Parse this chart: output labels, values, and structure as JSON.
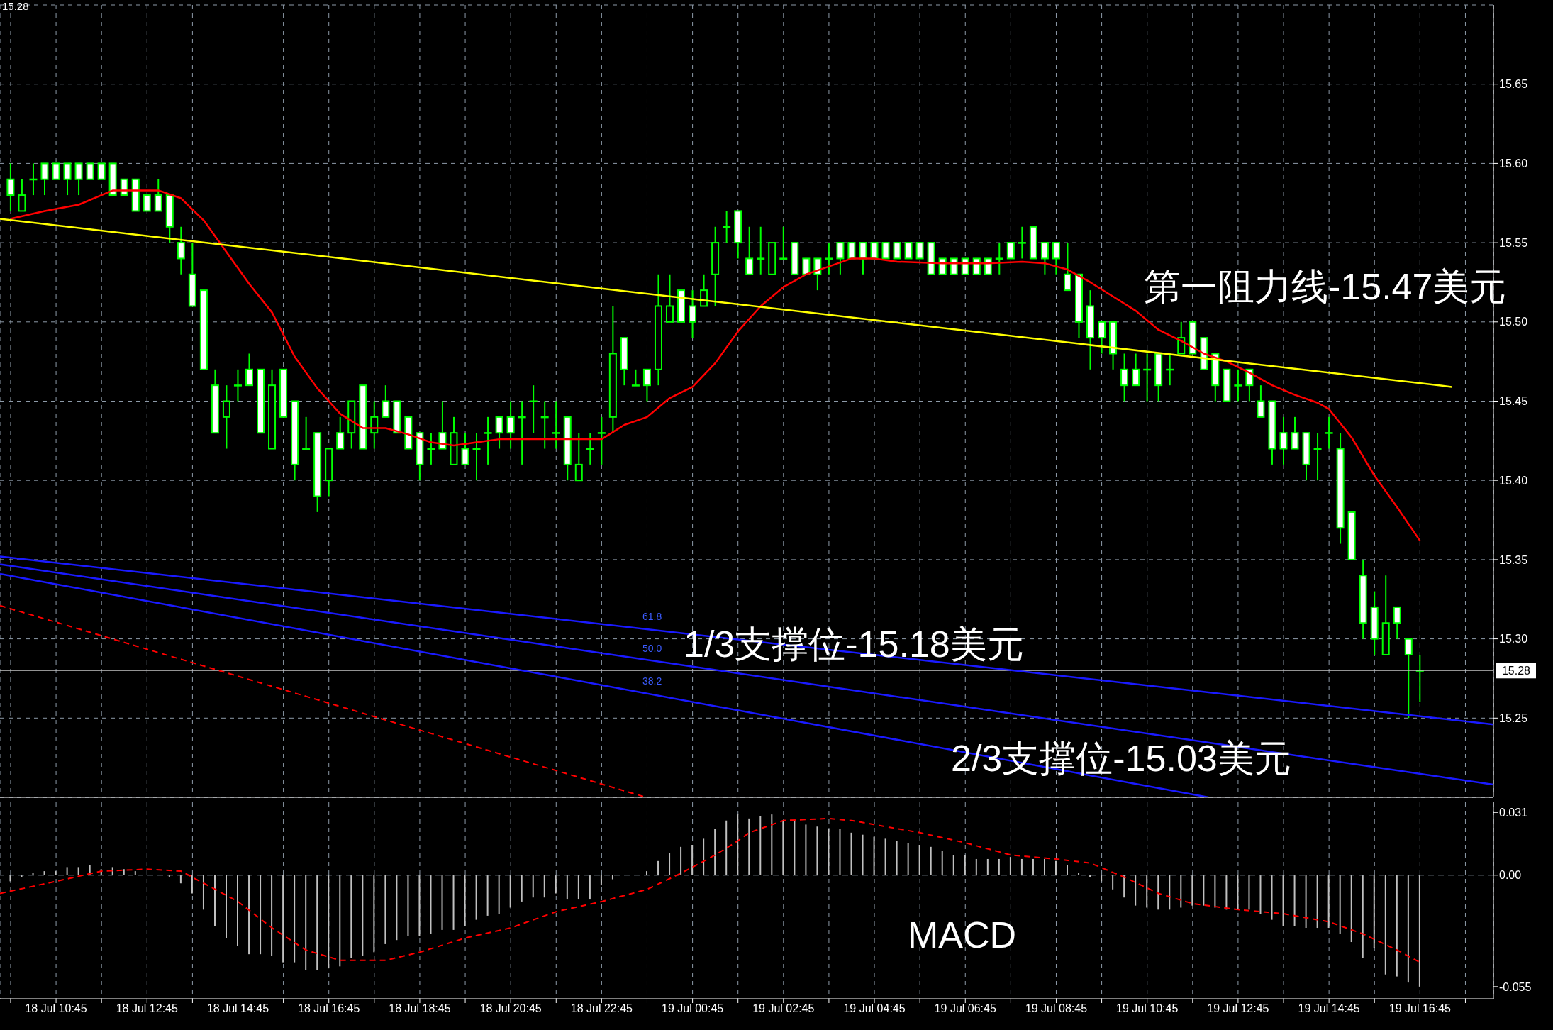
{
  "chart_data": [
    {
      "type": "candlestick",
      "color": "#00ff00",
      "x": [
        "--07-18T09:45",
        "--07-18T10:00",
        "--07-18T10:15",
        "--07-18T10:30",
        "--07-18T10:45",
        "--07-18T11:00",
        "--07-18T11:15",
        "--07-18T11:30",
        "--07-18T11:45",
        "--07-18T12:00",
        "--07-18T12:15",
        "--07-18T12:30",
        "--07-18T12:45",
        "--07-18T13:00",
        "--07-18T13:15",
        "--07-18T13:30",
        "--07-18T13:45",
        "--07-18T14:00",
        "--07-18T14:15",
        "--07-18T14:30",
        "--07-18T14:45",
        "--07-18T15:00",
        "--07-18T15:15",
        "--07-18T15:30",
        "--07-18T15:45",
        "--07-18T16:00",
        "--07-18T16:15",
        "--07-18T16:30",
        "--07-18T16:45",
        "--07-18T17:00",
        "--07-18T17:15",
        "--07-18T17:30",
        "--07-18T17:45",
        "--07-18T18:00",
        "--07-18T18:15",
        "--07-18T18:30",
        "--07-18T18:45",
        "--07-18T19:00",
        "--07-18T19:15",
        "--07-18T19:30",
        "--07-18T19:45",
        "--07-18T20:00",
        "--07-18T20:15",
        "--07-18T20:30",
        "--07-18T20:45",
        "--07-18T21:00",
        "--07-18T21:15",
        "--07-18T21:30",
        "--07-18T21:45",
        "--07-18T22:00",
        "--07-18T22:15",
        "--07-18T22:30",
        "--07-18T22:45",
        "--07-18T23:00",
        "--07-18T23:15",
        "--07-18T23:30",
        "--07-18T23:45",
        "--07-19T00:00",
        "--07-19T00:15",
        "--07-19T00:30",
        "--07-19T00:45",
        "--07-19T01:00",
        "--07-19T01:15",
        "--07-19T01:30",
        "--07-19T01:45",
        "--07-19T02:00",
        "--07-19T02:15",
        "--07-19T02:30",
        "--07-19T02:45",
        "--07-19T03:00",
        "--07-19T03:15",
        "--07-19T03:30",
        "--07-19T03:45",
        "--07-19T04:00",
        "--07-19T04:15",
        "--07-19T04:30",
        "--07-19T04:45",
        "--07-19T05:00",
        "--07-19T05:15",
        "--07-19T05:30",
        "--07-19T05:45",
        "--07-19T06:00",
        "--07-19T06:15",
        "--07-19T06:30",
        "--07-19T06:45",
        "--07-19T07:00",
        "--07-19T07:15",
        "--07-19T07:30",
        "--07-19T07:45",
        "--07-19T08:00",
        "--07-19T08:15",
        "--07-19T08:30",
        "--07-19T08:45",
        "--07-19T09:00",
        "--07-19T09:15",
        "--07-19T09:30",
        "--07-19T09:45",
        "--07-19T10:00",
        "--07-19T10:15",
        "--07-19T10:30",
        "--07-19T10:45",
        "--07-19T11:00",
        "--07-19T11:15",
        "--07-19T11:30",
        "--07-19T11:45",
        "--07-19T12:00",
        "--07-19T12:15",
        "--07-19T12:30",
        "--07-19T12:45",
        "--07-19T13:00",
        "--07-19T13:15",
        "--07-19T13:30",
        "--07-19T13:45",
        "--07-19T14:00",
        "--07-19T14:15",
        "--07-19T14:30",
        "--07-19T14:45",
        "--07-19T15:00",
        "--07-19T15:15",
        "--07-19T15:30",
        "--07-19T15:45",
        "--07-19T16:00",
        "--07-19T16:15",
        "--07-19T16:30",
        "--07-19T16:45"
      ],
      "ohlc": [
        [
          15.59,
          15.6,
          15.57,
          15.58
        ],
        [
          15.57,
          15.59,
          15.57,
          15.58
        ],
        [
          15.59,
          15.6,
          15.58,
          15.59
        ],
        [
          15.6,
          15.6,
          15.58,
          15.59
        ],
        [
          15.6,
          15.6,
          15.59,
          15.59
        ],
        [
          15.6,
          15.6,
          15.58,
          15.59
        ],
        [
          15.6,
          15.6,
          15.58,
          15.59
        ],
        [
          15.6,
          15.6,
          15.59,
          15.59
        ],
        [
          15.6,
          15.6,
          15.59,
          15.59
        ],
        [
          15.6,
          15.6,
          15.58,
          15.58
        ],
        [
          15.59,
          15.59,
          15.58,
          15.58
        ],
        [
          15.59,
          15.59,
          15.57,
          15.57
        ],
        [
          15.58,
          15.58,
          15.57,
          15.57
        ],
        [
          15.58,
          15.59,
          15.57,
          15.57
        ],
        [
          15.58,
          15.58,
          15.55,
          15.56
        ],
        [
          15.55,
          15.56,
          15.53,
          15.54
        ],
        [
          15.53,
          15.55,
          15.51,
          15.51
        ],
        [
          15.52,
          15.52,
          15.47,
          15.47
        ],
        [
          15.46,
          15.47,
          15.43,
          15.43
        ],
        [
          15.44,
          15.46,
          15.42,
          15.45
        ],
        [
          15.46,
          15.47,
          15.45,
          15.46
        ],
        [
          15.47,
          15.48,
          15.46,
          15.46
        ],
        [
          15.47,
          15.47,
          15.43,
          15.43
        ],
        [
          15.42,
          15.47,
          15.42,
          15.46
        ],
        [
          15.47,
          15.47,
          15.44,
          15.44
        ],
        [
          15.45,
          15.45,
          15.4,
          15.41
        ],
        [
          15.42,
          15.44,
          15.42,
          15.42
        ],
        [
          15.43,
          15.43,
          15.38,
          15.39
        ],
        [
          15.4,
          15.42,
          15.39,
          15.42
        ],
        [
          15.43,
          15.44,
          15.42,
          15.42
        ],
        [
          15.43,
          15.45,
          15.42,
          15.45
        ],
        [
          15.46,
          15.46,
          15.42,
          15.42
        ],
        [
          15.43,
          15.45,
          15.42,
          15.44
        ],
        [
          15.45,
          15.46,
          15.44,
          15.44
        ],
        [
          15.45,
          15.45,
          15.43,
          15.43
        ],
        [
          15.44,
          15.44,
          15.42,
          15.42
        ],
        [
          15.43,
          15.43,
          15.4,
          15.41
        ],
        [
          15.42,
          15.43,
          15.41,
          15.42
        ],
        [
          15.43,
          15.45,
          15.42,
          15.42
        ],
        [
          15.41,
          15.44,
          15.41,
          15.43
        ],
        [
          15.42,
          15.43,
          15.41,
          15.41
        ],
        [
          15.42,
          15.43,
          15.4,
          15.42
        ],
        [
          15.43,
          15.44,
          15.41,
          15.43
        ],
        [
          15.44,
          15.44,
          15.42,
          15.43
        ],
        [
          15.44,
          15.45,
          15.42,
          15.43
        ],
        [
          15.44,
          15.45,
          15.41,
          15.44
        ],
        [
          15.45,
          15.46,
          15.43,
          15.45
        ],
        [
          15.44,
          15.45,
          15.42,
          15.44
        ],
        [
          15.43,
          15.45,
          15.42,
          15.43
        ],
        [
          15.44,
          15.44,
          15.4,
          15.41
        ],
        [
          15.4,
          15.43,
          15.4,
          15.41
        ],
        [
          15.42,
          15.43,
          15.41,
          15.42
        ],
        [
          15.43,
          15.44,
          15.41,
          15.43
        ],
        [
          15.44,
          15.51,
          15.43,
          15.48
        ],
        [
          15.49,
          15.49,
          15.46,
          15.47
        ],
        [
          15.46,
          15.47,
          15.46,
          15.46
        ],
        [
          15.47,
          15.47,
          15.45,
          15.46
        ],
        [
          15.47,
          15.53,
          15.46,
          15.51
        ],
        [
          15.5,
          15.53,
          15.5,
          15.51
        ],
        [
          15.52,
          15.52,
          15.5,
          15.5
        ],
        [
          15.51,
          15.52,
          15.49,
          15.5
        ],
        [
          15.51,
          15.53,
          15.51,
          15.52
        ],
        [
          15.53,
          15.56,
          15.51,
          15.55
        ],
        [
          15.56,
          15.57,
          15.55,
          15.56
        ],
        [
          15.57,
          15.57,
          15.54,
          15.55
        ],
        [
          15.54,
          15.56,
          15.53,
          15.53
        ],
        [
          15.54,
          15.56,
          15.53,
          15.54
        ],
        [
          15.53,
          15.55,
          15.53,
          15.55
        ],
        [
          15.54,
          15.56,
          15.54,
          15.54
        ],
        [
          15.55,
          15.55,
          15.53,
          15.53
        ],
        [
          15.54,
          15.54,
          15.53,
          15.53
        ],
        [
          15.54,
          15.54,
          15.52,
          15.53
        ],
        [
          15.54,
          15.55,
          15.53,
          15.54
        ],
        [
          15.55,
          15.55,
          15.53,
          15.54
        ],
        [
          15.55,
          15.55,
          15.54,
          15.54
        ],
        [
          15.55,
          15.55,
          15.53,
          15.54
        ],
        [
          15.55,
          15.55,
          15.54,
          15.54
        ],
        [
          15.55,
          15.55,
          15.54,
          15.54
        ],
        [
          15.55,
          15.55,
          15.54,
          15.54
        ],
        [
          15.55,
          15.55,
          15.54,
          15.54
        ],
        [
          15.55,
          15.55,
          15.54,
          15.54
        ],
        [
          15.55,
          15.55,
          15.53,
          15.53
        ],
        [
          15.54,
          15.54,
          15.53,
          15.53
        ],
        [
          15.54,
          15.54,
          15.53,
          15.53
        ],
        [
          15.54,
          15.54,
          15.53,
          15.53
        ],
        [
          15.54,
          15.54,
          15.53,
          15.53
        ],
        [
          15.54,
          15.54,
          15.53,
          15.53
        ],
        [
          15.54,
          15.55,
          15.53,
          15.54
        ],
        [
          15.55,
          15.55,
          15.54,
          15.54
        ],
        [
          15.55,
          15.56,
          15.54,
          15.55
        ],
        [
          15.56,
          15.56,
          15.54,
          15.54
        ],
        [
          15.55,
          15.55,
          15.53,
          15.54
        ],
        [
          15.55,
          15.55,
          15.53,
          15.54
        ],
        [
          15.53,
          15.55,
          15.52,
          15.52
        ],
        [
          15.53,
          15.53,
          15.49,
          15.5
        ],
        [
          15.51,
          15.52,
          15.47,
          15.49
        ],
        [
          15.5,
          15.5,
          15.48,
          15.49
        ],
        [
          15.5,
          15.5,
          15.47,
          15.48
        ],
        [
          15.47,
          15.48,
          15.45,
          15.46
        ],
        [
          15.47,
          15.48,
          15.46,
          15.46
        ],
        [
          15.47,
          15.48,
          15.45,
          15.47
        ],
        [
          15.48,
          15.48,
          15.45,
          15.46
        ],
        [
          15.47,
          15.48,
          15.46,
          15.47
        ],
        [
          15.48,
          15.5,
          15.48,
          15.49
        ],
        [
          15.5,
          15.5,
          15.48,
          15.48
        ],
        [
          15.49,
          15.49,
          15.47,
          15.47
        ],
        [
          15.48,
          15.48,
          15.45,
          15.46
        ],
        [
          15.47,
          15.47,
          15.45,
          15.45
        ],
        [
          15.46,
          15.47,
          15.45,
          15.46
        ],
        [
          15.47,
          15.47,
          15.45,
          15.46
        ],
        [
          15.45,
          15.46,
          15.44,
          15.44
        ],
        [
          15.45,
          15.45,
          15.41,
          15.42
        ],
        [
          15.43,
          15.44,
          15.41,
          15.42
        ],
        [
          15.43,
          15.44,
          15.42,
          15.42
        ],
        [
          15.43,
          15.43,
          15.4,
          15.41
        ],
        [
          15.42,
          15.43,
          15.4,
          15.42
        ],
        [
          15.43,
          15.44,
          15.42,
          15.43
        ],
        [
          15.42,
          15.43,
          15.36,
          15.37
        ],
        [
          15.38,
          15.38,
          15.35,
          15.35
        ],
        [
          15.34,
          15.35,
          15.3,
          15.31
        ],
        [
          15.32,
          15.33,
          15.29,
          15.3
        ],
        [
          15.29,
          15.34,
          15.29,
          15.31
        ],
        [
          15.32,
          15.32,
          15.3,
          15.31
        ],
        [
          15.3,
          15.3,
          15.25,
          15.29
        ],
        [
          15.28,
          15.29,
          15.26,
          15.28
        ]
      ],
      "series": [
        {
          "type": "line",
          "color": "#ff0000",
          "x": [
            "--07-18T09:45",
            "--07-18T10:30",
            "--07-18T11:15",
            "--07-18T12:00",
            "--07-18T13:00",
            "--07-18T13:30",
            "--07-18T14:00",
            "--07-18T14:30",
            "--07-18T15:00",
            "--07-18T15:30",
            "--07-18T16:00",
            "--07-18T16:30",
            "--07-18T17:00",
            "--07-18T17:30",
            "--07-18T18:00",
            "--07-18T18:30",
            "--07-18T19:00",
            "--07-18T19:30",
            "--07-18T20:00",
            "--07-18T20:30",
            "--07-18T21:30",
            "--07-18T22:45",
            "--07-18T23:15",
            "--07-18T23:45",
            "--07-19T00:15",
            "--07-19T00:45",
            "--07-19T01:15",
            "--07-19T01:45",
            "--07-19T02:15",
            "--07-19T02:45",
            "--07-19T03:15",
            "--07-19T03:45",
            "--07-19T04:15",
            "--07-19T04:45",
            "--07-19T05:15",
            "--07-19T06:15",
            "--07-19T07:15",
            "--07-19T08:00",
            "--07-19T08:30",
            "--07-19T09:00",
            "--07-19T09:30",
            "--07-19T10:00",
            "--07-19T10:30",
            "--07-19T11:00",
            "--07-19T11:30",
            "--07-19T12:00",
            "--07-19T12:30",
            "--07-19T13:00",
            "--07-19T13:30",
            "--07-19T14:00",
            "--07-19T14:30",
            "--07-19T14:45",
            "--07-19T15:15",
            "--07-19T15:45",
            "--07-19T16:15",
            "--07-19T16:45"
          ],
          "values": [
            15.565,
            15.57,
            15.574,
            15.583,
            15.583,
            15.578,
            15.564,
            15.544,
            15.524,
            15.506,
            15.478,
            15.458,
            15.442,
            15.433,
            15.433,
            15.429,
            15.424,
            15.422,
            15.424,
            15.426,
            15.426,
            15.426,
            15.435,
            15.44,
            15.452,
            15.459,
            15.474,
            15.494,
            15.51,
            15.522,
            15.53,
            15.535,
            15.54,
            15.54,
            15.538,
            15.537,
            15.537,
            15.538,
            15.537,
            15.533,
            15.525,
            15.516,
            15.507,
            15.495,
            15.488,
            15.48,
            15.475,
            15.468,
            15.46,
            15.454,
            15.449,
            15.445,
            15.427,
            15.403,
            15.383,
            15.362
          ]
        },
        {
          "type": "line",
          "color": "#ffff00",
          "x": [
            "--07-18T09:31",
            "--07-19T17:27"
          ],
          "values": [
            15.565,
            15.459
          ]
        },
        {
          "type": "line",
          "color": "#1a1aff",
          "x": [
            "--07-18T09:31",
            "--07-19T18:22"
          ],
          "values": [
            15.352,
            15.246
          ]
        },
        {
          "type": "line",
          "color": "#1a1aff",
          "x": [
            "--07-18T09:31",
            "--07-19T18:22"
          ],
          "values": [
            15.347,
            15.208
          ]
        },
        {
          "type": "line",
          "color": "#1a1aff",
          "x": [
            "--07-18T09:31",
            "--07-19T12:06"
          ],
          "values": [
            15.341,
            15.2
          ]
        },
        {
          "type": "line",
          "color": "#ff0000",
          "line_style": "dashed",
          "x": [
            "--07-18T09:31",
            "--07-18T23:44"
          ],
          "values": [
            15.321,
            15.2
          ]
        }
      ],
      "xlim": [
        "--07-18T09:31",
        "--07-19T18:22"
      ],
      "xticks": [
        {
          "value": "--07-18T09:45",
          "label": null
        },
        {
          "value": "--07-18T10:45",
          "label": "18 Jul 10:45"
        },
        {
          "value": "--07-18T11:45",
          "label": null
        },
        {
          "value": "--07-18T12:45",
          "label": "18 Jul 12:45"
        },
        {
          "value": "--07-18T13:45",
          "label": null
        },
        {
          "value": "--07-18T14:45",
          "label": "18 Jul 14:45"
        },
        {
          "value": "--07-18T15:45",
          "label": null
        },
        {
          "value": "--07-18T16:45",
          "label": "18 Jul 16:45"
        },
        {
          "value": "--07-18T17:45",
          "label": null
        },
        {
          "value": "--07-18T18:45",
          "label": "18 Jul 18:45"
        },
        {
          "value": "--07-18T19:45",
          "label": null
        },
        {
          "value": "--07-18T20:45",
          "label": "18 Jul 20:45"
        },
        {
          "value": "--07-18T21:45",
          "label": null
        },
        {
          "value": "--07-18T22:45",
          "label": "18 Jul 22:45"
        },
        {
          "value": "--07-18T23:45",
          "label": null
        },
        {
          "value": "--07-19T00:45",
          "label": "19 Jul 00:45"
        },
        {
          "value": "--07-19T01:45",
          "label": null
        },
        {
          "value": "--07-19T02:45",
          "label": "19 Jul 02:45"
        },
        {
          "value": "--07-19T03:45",
          "label": null
        },
        {
          "value": "--07-19T04:45",
          "label": "19 Jul 04:45"
        },
        {
          "value": "--07-19T05:45",
          "label": null
        },
        {
          "value": "--07-19T06:45",
          "label": "19 Jul 06:45"
        },
        {
          "value": "--07-19T07:45",
          "label": null
        },
        {
          "value": "--07-19T08:45",
          "label": "19 Jul 08:45"
        },
        {
          "value": "--07-19T09:45",
          "label": null
        },
        {
          "value": "--07-19T10:45",
          "label": "19 Jul 10:45"
        },
        {
          "value": "--07-19T11:45",
          "label": null
        },
        {
          "value": "--07-19T12:45",
          "label": "19 Jul 12:45"
        },
        {
          "value": "--07-19T13:45",
          "label": null
        },
        {
          "value": "--07-19T14:45",
          "label": "19 Jul 14:45"
        },
        {
          "value": "--07-19T15:45",
          "label": null
        },
        {
          "value": "--07-19T16:45",
          "label": "19 Jul 16:45"
        },
        {
          "value": "--07-19T17:45",
          "label": null
        }
      ],
      "ylim": [
        15.2,
        15.7
      ],
      "yticks": [
        15.25,
        {
          "value": 15.3,
          "label": "15.30"
        },
        15.35,
        {
          "value": 15.4,
          "label": "15.40"
        },
        15.45,
        {
          "value": 15.5,
          "label": "15.50"
        },
        15.55,
        {
          "value": 15.6,
          "label": "15.60"
        },
        15.65
      ],
      "tick_labels": "y",
      "grid": true,
      "ref_lines": [
        {
          "axis": "y",
          "value": 15.28,
          "label": "15.28",
          "color": "#c0c0c0"
        }
      ],
      "annotations": [
        "15.28",
        "第一阻力线-15.47美元",
        "1/3支撑位-15.18美元",
        "2/3支撑位-15.03美元",
        "61.8",
        "50.0",
        "38.2"
      ]
    },
    {
      "type": "bar",
      "x": [
        "--07-18T09:45",
        "--07-18T10:00",
        "--07-18T10:15",
        "--07-18T10:30",
        "--07-18T10:45",
        "--07-18T11:00",
        "--07-18T11:15",
        "--07-18T11:30",
        "--07-18T11:45",
        "--07-18T12:00",
        "--07-18T12:15",
        "--07-18T12:30",
        "--07-18T12:45",
        "--07-18T13:00",
        "--07-18T13:15",
        "--07-18T13:30",
        "--07-18T13:45",
        "--07-18T14:00",
        "--07-18T14:15",
        "--07-18T14:30",
        "--07-18T14:45",
        "--07-18T15:00",
        "--07-18T15:15",
        "--07-18T15:30",
        "--07-18T15:45",
        "--07-18T16:00",
        "--07-18T16:15",
        "--07-18T16:30",
        "--07-18T16:45",
        "--07-18T17:00",
        "--07-18T17:15",
        "--07-18T17:30",
        "--07-18T17:45",
        "--07-18T18:00",
        "--07-18T18:15",
        "--07-18T18:30",
        "--07-18T18:45",
        "--07-18T19:00",
        "--07-18T19:15",
        "--07-18T19:30",
        "--07-18T19:45",
        "--07-18T20:00",
        "--07-18T20:15",
        "--07-18T20:30",
        "--07-18T20:45",
        "--07-18T21:00",
        "--07-18T21:15",
        "--07-18T21:30",
        "--07-18T21:45",
        "--07-18T22:00",
        "--07-18T22:15",
        "--07-18T22:30",
        "--07-18T22:45",
        "--07-18T23:00",
        "--07-18T23:15",
        "--07-18T23:30",
        "--07-18T23:45",
        "--07-19T00:00",
        "--07-19T00:15",
        "--07-19T00:30",
        "--07-19T00:45",
        "--07-19T01:00",
        "--07-19T01:15",
        "--07-19T01:30",
        "--07-19T01:45",
        "--07-19T02:00",
        "--07-19T02:15",
        "--07-19T02:30",
        "--07-19T02:45",
        "--07-19T03:00",
        "--07-19T03:15",
        "--07-19T03:30",
        "--07-19T03:45",
        "--07-19T04:00",
        "--07-19T04:15",
        "--07-19T04:30",
        "--07-19T04:45",
        "--07-19T05:00",
        "--07-19T05:15",
        "--07-19T05:30",
        "--07-19T05:45",
        "--07-19T06:00",
        "--07-19T06:15",
        "--07-19T06:30",
        "--07-19T06:45",
        "--07-19T07:00",
        "--07-19T07:15",
        "--07-19T07:30",
        "--07-19T07:45",
        "--07-19T08:00",
        "--07-19T08:15",
        "--07-19T08:30",
        "--07-19T08:45",
        "--07-19T09:00",
        "--07-19T09:15",
        "--07-19T09:30",
        "--07-19T09:45",
        "--07-19T10:00",
        "--07-19T10:15",
        "--07-19T10:30",
        "--07-19T10:45",
        "--07-19T11:00",
        "--07-19T11:15",
        "--07-19T11:30",
        "--07-19T11:45",
        "--07-19T12:00",
        "--07-19T12:15",
        "--07-19T12:30",
        "--07-19T12:45",
        "--07-19T13:00",
        "--07-19T13:15",
        "--07-19T13:30",
        "--07-19T13:45",
        "--07-19T14:00",
        "--07-19T14:15",
        "--07-19T14:30",
        "--07-19T14:45",
        "--07-19T15:00",
        "--07-19T15:15",
        "--07-19T15:30",
        "--07-19T15:45",
        "--07-19T16:00",
        "--07-19T16:15",
        "--07-19T16:30",
        "--07-19T16:45"
      ],
      "series": [
        {
          "type": "bar",
          "color": "#c0c0c0",
          "values": [
            -0.003,
            -0.001,
            0.001,
            0.002,
            0.002,
            0.004,
            0.004,
            0.005,
            0.003,
            0.004,
            0.003,
            0.002,
            0,
            0,
            -0.001,
            -0.004,
            -0.009,
            -0.017,
            -0.025,
            -0.031,
            -0.035,
            -0.039,
            -0.039,
            -0.04,
            -0.043,
            -0.043,
            -0.047,
            -0.047,
            -0.046,
            -0.045,
            -0.041,
            -0.04,
            -0.038,
            -0.034,
            -0.032,
            -0.03,
            -0.03,
            -0.029,
            -0.027,
            -0.027,
            -0.025,
            -0.022,
            -0.02,
            -0.019,
            -0.016,
            -0.013,
            -0.011,
            -0.011,
            -0.009,
            -0.012,
            -0.012,
            -0.012,
            -0.005,
            -0.002,
            0,
            0,
            0.002,
            0.007,
            0.011,
            0.014,
            0.015,
            0.018,
            0.023,
            0.027,
            0.03,
            0.028,
            0.029,
            0.03,
            0.027,
            0.027,
            0.025,
            0.024,
            0.023,
            0.023,
            0.021,
            0.02,
            0.019,
            0.018,
            0.017,
            0.016,
            0.015,
            0.014,
            0.012,
            0.01,
            0.01,
            0.008,
            0.008,
            0.008,
            0.009,
            0.008,
            0.008,
            0.008,
            0.007,
            0.005,
            0.001,
            -0.001,
            -0.003,
            -0.007,
            -0.011,
            -0.015,
            -0.016,
            -0.017,
            -0.017,
            -0.016,
            -0.015,
            -0.015,
            -0.016,
            -0.017,
            -0.017,
            -0.017,
            -0.019,
            -0.022,
            -0.025,
            -0.025,
            -0.026,
            -0.026,
            -0.026,
            -0.029,
            -0.033,
            -0.041,
            -0.036,
            -0.049,
            -0.05,
            -0.053,
            -0.055
          ]
        },
        {
          "type": "line",
          "color": "#ff0000",
          "line_style": "dashed",
          "x": [
            "--07-18T09:31",
            "--07-18T10:45",
            "--07-18T11:45",
            "--07-18T12:45",
            "--07-18T13:30",
            "--07-18T14:00",
            "--07-18T14:45",
            "--07-18T15:30",
            "--07-18T16:15",
            "--07-18T17:00",
            "--07-18T18:00",
            "--07-18T18:45",
            "--07-18T19:45",
            "--07-18T20:45",
            "--07-18T21:45",
            "--07-18T22:45",
            "--07-18T23:45",
            "--07-19T00:30",
            "--07-19T01:15",
            "--07-19T01:45",
            "--07-19T02:00",
            "--07-19T02:45",
            "--07-19T03:45",
            "--07-19T04:15",
            "--07-19T05:00",
            "--07-19T05:45",
            "--07-19T06:45",
            "--07-19T07:45",
            "--07-19T08:45",
            "--07-19T09:30",
            "--07-19T10:15",
            "--07-19T11:00",
            "--07-19T11:45",
            "--07-19T12:45",
            "--07-19T13:45",
            "--07-19T14:45",
            "--07-19T15:30",
            "--07-19T16:15",
            "--07-19T16:45"
          ],
          "values": [
            -0.009,
            -0.003,
            0.002,
            0.003,
            0.002,
            -0.004,
            -0.013,
            -0.026,
            -0.037,
            -0.042,
            -0.042,
            -0.038,
            -0.031,
            -0.026,
            -0.018,
            -0.013,
            -0.007,
            0.001,
            0.01,
            0.017,
            0.021,
            0.027,
            0.028,
            0.027,
            0.024,
            0.021,
            0.016,
            0.01,
            0.008,
            0.006,
            -0.001,
            -0.009,
            -0.014,
            -0.017,
            -0.019,
            -0.023,
            -0.029,
            -0.037,
            -0.043
          ]
        }
      ],
      "xlim": [
        "--07-18T09:31",
        "--07-19T18:22"
      ],
      "xticks": [
        {
          "value": "--07-18T09:45",
          "label": null
        },
        {
          "value": "--07-18T10:45",
          "label": "18 Jul 10:45"
        },
        {
          "value": "--07-18T11:45",
          "label": null
        },
        {
          "value": "--07-18T12:45",
          "label": "18 Jul 12:45"
        },
        {
          "value": "--07-18T13:45",
          "label": null
        },
        {
          "value": "--07-18T14:45",
          "label": "18 Jul 14:45"
        },
        {
          "value": "--07-18T15:45",
          "label": null
        },
        {
          "value": "--07-18T16:45",
          "label": "18 Jul 16:45"
        },
        {
          "value": "--07-18T17:45",
          "label": null
        },
        {
          "value": "--07-18T18:45",
          "label": "18 Jul 18:45"
        },
        {
          "value": "--07-18T19:45",
          "label": null
        },
        {
          "value": "--07-18T20:45",
          "label": "18 Jul 20:45"
        },
        {
          "value": "--07-18T21:45",
          "label": null
        },
        {
          "value": "--07-18T22:45",
          "label": "18 Jul 22:45"
        },
        {
          "value": "--07-18T23:45",
          "label": null
        },
        {
          "value": "--07-19T00:45",
          "label": "19 Jul 00:45"
        },
        {
          "value": "--07-19T01:45",
          "label": null
        },
        {
          "value": "--07-19T02:45",
          "label": "19 Jul 02:45"
        },
        {
          "value": "--07-19T03:45",
          "label": null
        },
        {
          "value": "--07-19T04:45",
          "label": "19 Jul 04:45"
        },
        {
          "value": "--07-19T05:45",
          "label": null
        },
        {
          "value": "--07-19T06:45",
          "label": "19 Jul 06:45"
        },
        {
          "value": "--07-19T07:45",
          "label": null
        },
        {
          "value": "--07-19T08:45",
          "label": "19 Jul 08:45"
        },
        {
          "value": "--07-19T09:45",
          "label": null
        },
        {
          "value": "--07-19T10:45",
          "label": "19 Jul 10:45"
        },
        {
          "value": "--07-19T11:45",
          "label": null
        },
        {
          "value": "--07-19T12:45",
          "label": "19 Jul 12:45"
        },
        {
          "value": "--07-19T13:45",
          "label": null
        },
        {
          "value": "--07-19T14:45",
          "label": "19 Jul 14:45"
        },
        {
          "value": "--07-19T15:45",
          "label": null
        },
        {
          "value": "--07-19T16:45",
          "label": "19 Jul 16:45"
        },
        {
          "value": "--07-19T17:45",
          "label": null
        }
      ],
      "ylim": [
        -0.061,
        0.036
      ],
      "yticks": [
        0.031,
        {
          "value": 0,
          "label": "0.00"
        },
        -0.055
      ],
      "grid": "x",
      "ref_lines": [
        {
          "axis": "y",
          "value": 0,
          "color": "#8d9aa8",
          "line_style": "dashed"
        }
      ],
      "annotations": [
        "MACD"
      ]
    }
  ]
}
